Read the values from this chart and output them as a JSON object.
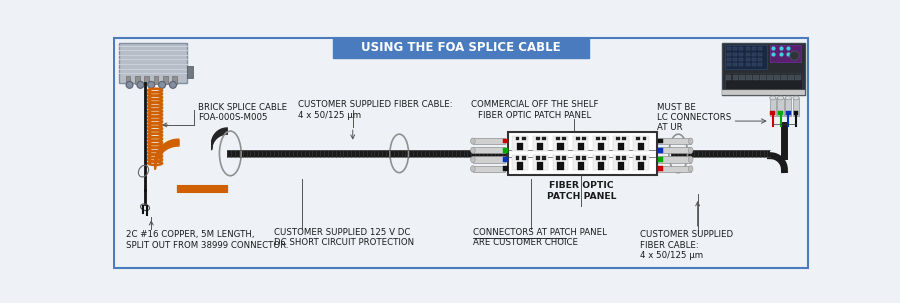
{
  "title": "USING THE FOA SPLICE CABLE",
  "title_bg": "#4a7bbf",
  "title_text_color": "#ffffff",
  "bg_color": "#eef2f7",
  "border_color": "#4a7bbf",
  "label_font_size": 6.2,
  "labels": {
    "brick_splice": "BRICK SPLICE CABLE\nFOA-000S-M005",
    "customer_fiber_top": "CUSTOMER SUPPLIED FIBER CABLE:\n4 x 50/125 μm",
    "commercial": "COMMERCIAL OFF THE SHELF\nFIBER OPTIC PATCH PANEL",
    "must_be": "MUST BE\nLC CONNECTORS\nAT UR",
    "fiber_optic_panel": "FIBER OPTIC\nPATCH PANEL",
    "copper": "2C #16 COPPER, 5M LENGTH,\nSPLIT OUT FROM 38999 CONNECTOR.",
    "customer_125v": "CUSTOMER SUPPLIED 125 V DC\nDC SHORT CIRCUIT PROTECTION",
    "connectors_choice": "CONNECTORS AT PATCH PANEL\nARE CUSTOMER CHOICE",
    "customer_fiber_bot": "CUSTOMER SUPPLIED\nFIBER CABLE:\n4 x 50/125 μm"
  }
}
